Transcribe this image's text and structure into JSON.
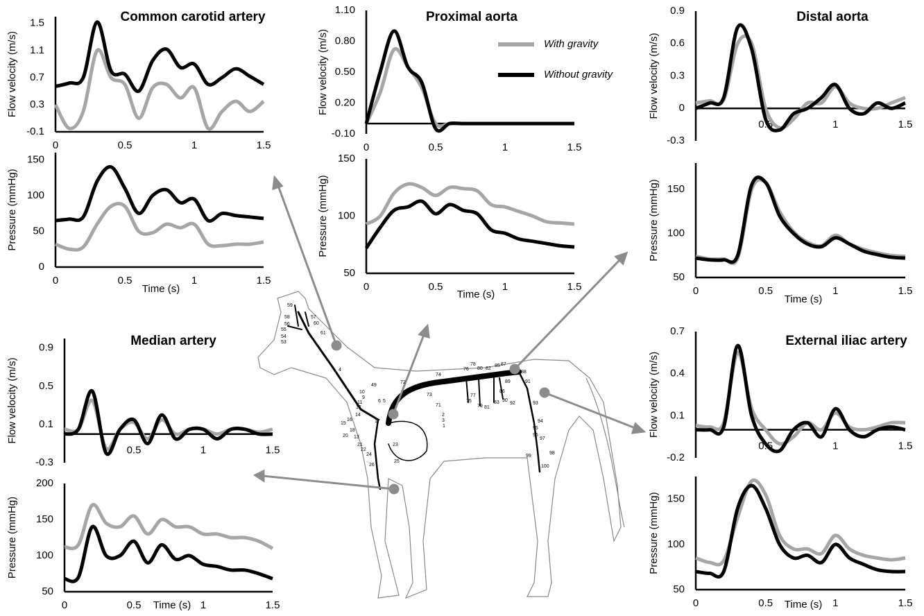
{
  "chart_data": [
    {
      "type": "line",
      "title": "Common carotid artery",
      "ylabel": "Flow velocity (m/s)",
      "x": [
        0,
        0.1,
        0.2,
        0.3,
        0.4,
        0.5,
        0.6,
        0.7,
        0.8,
        0.9,
        1.0,
        1.1,
        1.2,
        1.3,
        1.4,
        1.5
      ],
      "series": [
        {
          "color": "#a6a6a6",
          "values": [
            0.3,
            -0.05,
            0.2,
            1.1,
            0.7,
            0.6,
            0.1,
            0.55,
            0.6,
            0.4,
            0.55,
            -0.05,
            0.2,
            0.35,
            0.2,
            0.35
          ]
        },
        {
          "color": "#000000",
          "values": [
            0.57,
            0.62,
            0.7,
            1.52,
            0.8,
            0.75,
            0.5,
            0.95,
            1.12,
            0.85,
            0.9,
            0.6,
            0.7,
            0.83,
            0.72,
            0.6
          ]
        }
      ],
      "xlim": [
        0,
        1.5
      ],
      "ylim": [
        -0.1,
        1.6
      ],
      "xticks": [
        0,
        0.5,
        1,
        1.5
      ],
      "yticks": [
        -0.1,
        0.3,
        0.7,
        1.1,
        1.5
      ]
    },
    {
      "type": "line",
      "ylabel": "Pressure (mmHg)",
      "xlabel": "Time (s)",
      "x": [
        0,
        0.1,
        0.2,
        0.3,
        0.4,
        0.5,
        0.6,
        0.7,
        0.8,
        0.9,
        1.0,
        1.1,
        1.2,
        1.3,
        1.4,
        1.5
      ],
      "series": [
        {
          "color": "#a6a6a6",
          "values": [
            32,
            25,
            28,
            60,
            85,
            85,
            50,
            48,
            60,
            55,
            60,
            32,
            30,
            32,
            32,
            35
          ]
        },
        {
          "color": "#000000",
          "values": [
            65,
            67,
            70,
            120,
            140,
            110,
            75,
            100,
            108,
            90,
            95,
            65,
            75,
            72,
            70,
            68
          ]
        }
      ],
      "xlim": [
        0,
        1.5
      ],
      "ylim": [
        0,
        160
      ],
      "xticks": [
        0,
        0.5,
        1,
        1.5
      ],
      "yticks": [
        0,
        50,
        100,
        150
      ]
    },
    {
      "type": "line",
      "title": "Proximal aorta",
      "ylabel": "Flow velocity (m/s)",
      "x": [
        0,
        0.1,
        0.2,
        0.3,
        0.4,
        0.5,
        0.6,
        0.7,
        0.8,
        0.9,
        1.0,
        1.1,
        1.2,
        1.3,
        1.4,
        1.5
      ],
      "series": [
        {
          "name": "With gravity",
          "color": "#a6a6a6",
          "values": [
            0,
            0.3,
            0.72,
            0.55,
            0.35,
            0,
            0,
            0,
            0,
            0,
            0,
            0,
            0,
            0,
            0,
            0
          ]
        },
        {
          "name": "Without  gravity",
          "color": "#000000",
          "values": [
            0,
            0.5,
            0.9,
            0.55,
            0.4,
            -0.05,
            0,
            0,
            0,
            0,
            0,
            0,
            0,
            0,
            0,
            0
          ]
        }
      ],
      "legend": "upper right",
      "xlim": [
        0,
        1.5
      ],
      "ylim": [
        -0.1,
        1.1
      ],
      "xticks": [
        0,
        0.5,
        1,
        1.5
      ],
      "yticks": [
        {
          "value": -0.1,
          "label": "-0.10"
        },
        {
          "value": 0.2,
          "label": "0.20"
        },
        {
          "value": 0.5,
          "label": "0.50"
        },
        {
          "value": 0.8,
          "label": "0.80"
        },
        {
          "value": 1.1,
          "label": "1.10"
        }
      ]
    },
    {
      "type": "line",
      "ylabel": "Pressure (mmHg)",
      "xlabel": "Time (s)",
      "x": [
        0,
        0.1,
        0.2,
        0.3,
        0.4,
        0.5,
        0.6,
        0.7,
        0.8,
        0.9,
        1.0,
        1.1,
        1.2,
        1.3,
        1.4,
        1.5
      ],
      "series": [
        {
          "color": "#a6a6a6",
          "values": [
            93,
            100,
            120,
            128,
            125,
            118,
            125,
            124,
            122,
            110,
            108,
            104,
            100,
            95,
            94,
            93
          ]
        },
        {
          "color": "#000000",
          "values": [
            72,
            90,
            105,
            108,
            113,
            102,
            110,
            105,
            102,
            88,
            85,
            80,
            78,
            76,
            74,
            73
          ]
        }
      ],
      "xlim": [
        0,
        1.5
      ],
      "ylim": [
        50,
        150
      ],
      "xticks": [
        0,
        0.5,
        1,
        1.5
      ],
      "yticks": [
        50,
        100,
        150
      ]
    },
    {
      "type": "line",
      "title": "Distal aorta",
      "ylabel": "Flow velocity (m/s)",
      "x": [
        0,
        0.1,
        0.2,
        0.3,
        0.4,
        0.5,
        0.6,
        0.7,
        0.8,
        0.9,
        1.0,
        1.1,
        1.2,
        1.3,
        1.4,
        1.5
      ],
      "series": [
        {
          "color": "#a6a6a6",
          "values": [
            0.05,
            0.07,
            0.08,
            0.6,
            0.6,
            0,
            -0.18,
            -0.1,
            0.05,
            0.05,
            0.2,
            0.05,
            0,
            0,
            0.05,
            0.1
          ]
        },
        {
          "color": "#000000",
          "values": [
            0,
            0.05,
            0.1,
            0.75,
            0.55,
            -0.1,
            -0.2,
            -0.05,
            0,
            0.1,
            0.22,
            0,
            -0.05,
            0.05,
            0,
            0.05
          ]
        }
      ],
      "xlim": [
        0,
        1.5
      ],
      "ylim": [
        -0.3,
        0.9
      ],
      "xticks": [
        0.5,
        1,
        1.5
      ],
      "yticks": [
        -0.3,
        0,
        0.3,
        0.6,
        0.9
      ]
    },
    {
      "type": "line",
      "ylabel": "Pressure (mmHg)",
      "xlabel": "Time (s)",
      "x": [
        0,
        0.1,
        0.2,
        0.3,
        0.4,
        0.5,
        0.6,
        0.7,
        0.8,
        0.9,
        1.0,
        1.1,
        1.2,
        1.3,
        1.4,
        1.5
      ],
      "series": [
        {
          "color": "#a6a6a6",
          "values": [
            74,
            71,
            71,
            72,
            150,
            158,
            125,
            102,
            90,
            86,
            98,
            88,
            82,
            78,
            75,
            74
          ]
        },
        {
          "color": "#000000",
          "values": [
            72,
            70,
            70,
            75,
            155,
            158,
            120,
            100,
            88,
            85,
            95,
            88,
            80,
            76,
            73,
            72
          ]
        }
      ],
      "xlim": [
        0,
        1.5
      ],
      "ylim": [
        50,
        180
      ],
      "xticks": [
        0,
        0.5,
        1,
        1.5
      ],
      "yticks": [
        50,
        100,
        150
      ]
    },
    {
      "type": "line",
      "title": "Median artery",
      "ylabel": "Flow velocity (m/s)",
      "x": [
        0,
        0.1,
        0.2,
        0.3,
        0.4,
        0.5,
        0.6,
        0.7,
        0.8,
        0.9,
        1.0,
        1.1,
        1.2,
        1.3,
        1.4,
        1.5
      ],
      "series": [
        {
          "color": "#a6a6a6",
          "values": [
            0.05,
            0.05,
            0.35,
            -0.15,
            0.05,
            0.12,
            -0.05,
            0.15,
            0,
            0.05,
            0.05,
            0,
            0.05,
            0.05,
            0.02,
            0.05
          ]
        },
        {
          "color": "#000000",
          "values": [
            0,
            0.05,
            0.45,
            -0.2,
            0.05,
            0.15,
            -0.1,
            0.2,
            -0.05,
            0.05,
            0.05,
            -0.05,
            0.05,
            0.05,
            0,
            0
          ]
        }
      ],
      "xlim": [
        0,
        1.5
      ],
      "ylim": [
        -0.3,
        1.0
      ],
      "xticks": [
        0.5,
        1,
        1.5
      ],
      "yticks": [
        -0.3,
        0.1,
        0.5,
        0.9
      ]
    },
    {
      "type": "line",
      "ylabel": "Pressure (mmHg)",
      "xlabel": "Time (s)",
      "x": [
        0,
        0.1,
        0.2,
        0.3,
        0.4,
        0.5,
        0.6,
        0.7,
        0.8,
        0.9,
        1.0,
        1.1,
        1.2,
        1.3,
        1.4,
        1.5
      ],
      "series": [
        {
          "color": "#a6a6a6",
          "values": [
            112,
            115,
            170,
            145,
            140,
            155,
            130,
            150,
            140,
            140,
            130,
            130,
            125,
            125,
            120,
            110
          ]
        },
        {
          "color": "#000000",
          "values": [
            68,
            70,
            140,
            100,
            100,
            120,
            90,
            115,
            95,
            100,
            88,
            85,
            80,
            80,
            75,
            68
          ]
        }
      ],
      "xlim": [
        0,
        1.5
      ],
      "ylim": [
        50,
        200
      ],
      "xticks": [
        0,
        0.5,
        1,
        1.5
      ],
      "yticks": [
        50,
        100,
        150,
        200
      ]
    },
    {
      "type": "line",
      "title": "External iliac artery",
      "ylabel": "Flow velocity (m/s)",
      "x": [
        0,
        0.1,
        0.2,
        0.3,
        0.4,
        0.5,
        0.6,
        0.7,
        0.8,
        0.9,
        1.0,
        1.1,
        1.2,
        1.3,
        1.4,
        1.5
      ],
      "series": [
        {
          "color": "#a6a6a6",
          "values": [
            0.03,
            0.02,
            0.05,
            0.55,
            0.15,
            0,
            -0.1,
            -0.05,
            0.05,
            0,
            0.12,
            0.02,
            0,
            0.02,
            0.05,
            0.05
          ]
        },
        {
          "color": "#000000",
          "values": [
            0,
            0,
            0.02,
            0.6,
            0.1,
            -0.1,
            -0.15,
            0,
            0.05,
            -0.05,
            0.15,
            0,
            -0.05,
            0,
            0.02,
            0
          ]
        }
      ],
      "xlim": [
        0,
        1.5
      ],
      "ylim": [
        -0.2,
        0.7
      ],
      "xticks": [
        0.5,
        1,
        1.5
      ],
      "yticks": [
        -0.2,
        0.1,
        0.4,
        0.7
      ]
    },
    {
      "type": "line",
      "ylabel": "Pressure (mmHg)",
      "xlabel": "Time (s)",
      "x": [
        0,
        0.1,
        0.2,
        0.3,
        0.4,
        0.5,
        0.6,
        0.7,
        0.8,
        0.9,
        1.0,
        1.1,
        1.2,
        1.3,
        1.4,
        1.5
      ],
      "series": [
        {
          "color": "#a6a6a6",
          "values": [
            85,
            80,
            82,
            130,
            170,
            155,
            110,
            95,
            95,
            90,
            110,
            95,
            88,
            85,
            83,
            85
          ]
        },
        {
          "color": "#000000",
          "values": [
            70,
            68,
            70,
            140,
            165,
            140,
            100,
            85,
            88,
            80,
            100,
            85,
            78,
            72,
            70,
            70
          ]
        }
      ],
      "xlim": [
        0,
        1.5
      ],
      "ylim": [
        50,
        175
      ],
      "xticks": [
        0,
        0.5,
        1,
        1.5
      ],
      "yticks": [
        50,
        100,
        150
      ]
    }
  ],
  "figure_labels": [
    "59",
    "58",
    "57",
    "56",
    "60",
    "55",
    "54",
    "61",
    "53",
    "4",
    "10",
    "9",
    "49",
    "72",
    "73",
    "74",
    "76",
    "78",
    "80",
    "82",
    "85",
    "87",
    "88",
    "89",
    "86",
    "91",
    "93",
    "94",
    "95",
    "96",
    "97",
    "98",
    "99",
    "100",
    "77",
    "75",
    "79",
    "81",
    "83",
    "90",
    "92",
    "71",
    "2",
    "3",
    "1",
    "17",
    "20",
    "21",
    "22",
    "24",
    "23",
    "25",
    "26",
    "15",
    "16",
    "18",
    "13",
    "11",
    "12",
    "14",
    "6",
    "5"
  ]
}
